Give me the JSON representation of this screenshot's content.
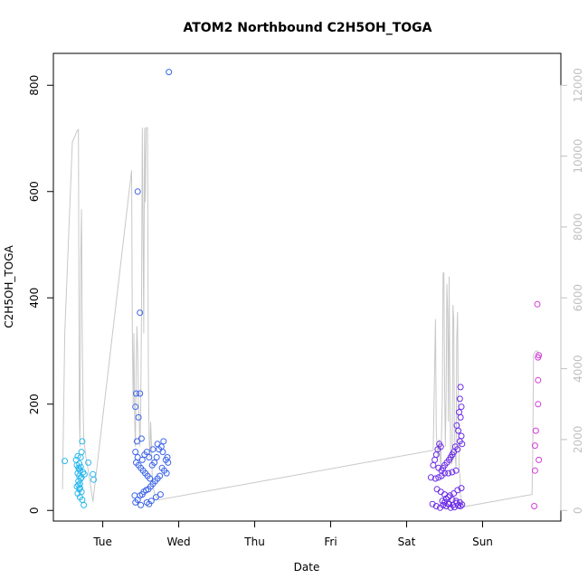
{
  "chart_data": {
    "type": "scatter",
    "title": "ATOM2 Northbound C2H5OH_TOGA",
    "xlabel": "Date",
    "ylabel": "C2H5OH_TOGA",
    "x_unit": "days",
    "x_ticks": [
      {
        "x": 1,
        "label": "Tue"
      },
      {
        "x": 2,
        "label": "Wed"
      },
      {
        "x": 3,
        "label": "Thu"
      },
      {
        "x": 4,
        "label": "Fri"
      },
      {
        "x": 5,
        "label": "Sat"
      },
      {
        "x": 6,
        "label": "Sun"
      }
    ],
    "xlim": [
      0.35,
      7.03
    ],
    "ylim": [
      -20,
      860
    ],
    "y_ticks": [
      0,
      200,
      400,
      600,
      800
    ],
    "y2lim": [
      -300,
      12900
    ],
    "y2_ticks": [
      0,
      2000,
      4000,
      6000,
      8000,
      10000,
      12000
    ],
    "colors": {
      "point_tue": "#2bb8ee",
      "point_wed": "#3c64e8",
      "point_sat": "#6b2ce6",
      "point_sun": "#d43ad8",
      "line": "#c8c8c8",
      "right_axis": "#c0c0c0"
    },
    "series": [
      {
        "color": "#2bb8ee",
        "points": [
          [
            0.5,
            93
          ],
          [
            0.71,
            100
          ],
          [
            0.72,
            110
          ],
          [
            0.73,
            130
          ],
          [
            0.66,
            85
          ],
          [
            0.68,
            80
          ],
          [
            0.69,
            78
          ],
          [
            0.7,
            75
          ],
          [
            0.67,
            70
          ],
          [
            0.69,
            65
          ],
          [
            0.71,
            60
          ],
          [
            0.68,
            55
          ],
          [
            0.7,
            50
          ],
          [
            0.66,
            45
          ],
          [
            0.69,
            40
          ],
          [
            0.72,
            35
          ],
          [
            0.67,
            32
          ],
          [
            0.7,
            25
          ],
          [
            0.73,
            20
          ],
          [
            0.75,
            10
          ],
          [
            0.69,
            88
          ],
          [
            0.71,
            82
          ],
          [
            0.74,
            72
          ],
          [
            0.76,
            68
          ],
          [
            0.72,
            62
          ],
          [
            0.68,
            48
          ],
          [
            0.7,
            42
          ],
          [
            0.81,
            90
          ],
          [
            0.87,
            68
          ],
          [
            0.88,
            58
          ],
          [
            0.65,
            95
          ],
          [
            0.67,
            102
          ]
        ]
      },
      {
        "color": "#3c64e8",
        "points": [
          [
            1.87,
            825
          ],
          [
            1.46,
            600
          ],
          [
            1.49,
            372
          ],
          [
            1.44,
            220
          ],
          [
            1.49,
            220
          ],
          [
            1.43,
            195
          ],
          [
            1.47,
            175
          ],
          [
            1.45,
            130
          ],
          [
            1.51,
            135
          ],
          [
            1.43,
            110
          ],
          [
            1.46,
            100
          ],
          [
            1.52,
            95
          ],
          [
            1.44,
            90
          ],
          [
            1.47,
            85
          ],
          [
            1.5,
            80
          ],
          [
            1.53,
            75
          ],
          [
            1.56,
            70
          ],
          [
            1.59,
            65
          ],
          [
            1.62,
            60
          ],
          [
            1.65,
            85
          ],
          [
            1.68,
            90
          ],
          [
            1.71,
            100
          ],
          [
            1.74,
            115
          ],
          [
            1.77,
            120
          ],
          [
            1.8,
            130
          ],
          [
            1.83,
            95
          ],
          [
            1.86,
            90
          ],
          [
            1.84,
            70
          ],
          [
            1.81,
            75
          ],
          [
            1.78,
            80
          ],
          [
            1.75,
            65
          ],
          [
            1.72,
            60
          ],
          [
            1.69,
            55
          ],
          [
            1.66,
            50
          ],
          [
            1.63,
            45
          ],
          [
            1.6,
            40
          ],
          [
            1.57,
            38
          ],
          [
            1.54,
            35
          ],
          [
            1.52,
            30
          ],
          [
            1.49,
            28
          ],
          [
            1.46,
            20
          ],
          [
            1.43,
            15
          ],
          [
            1.58,
            15
          ],
          [
            1.61,
            12
          ],
          [
            1.64,
            18
          ],
          [
            1.7,
            25
          ],
          [
            1.76,
            30
          ],
          [
            1.55,
            105
          ],
          [
            1.58,
            110
          ],
          [
            1.61,
            100
          ],
          [
            1.66,
            115
          ],
          [
            1.72,
            125
          ],
          [
            1.79,
            110
          ],
          [
            1.85,
            100
          ],
          [
            1.42,
            28
          ],
          [
            1.5,
            10
          ]
        ]
      },
      {
        "color": "#6b2ce6",
        "points": [
          [
            5.71,
            232
          ],
          [
            5.7,
            210
          ],
          [
            5.72,
            195
          ],
          [
            5.69,
            185
          ],
          [
            5.71,
            175
          ],
          [
            5.66,
            160
          ],
          [
            5.68,
            150
          ],
          [
            5.72,
            140
          ],
          [
            5.7,
            130
          ],
          [
            5.73,
            125
          ],
          [
            5.64,
            120
          ],
          [
            5.67,
            115
          ],
          [
            5.62,
            110
          ],
          [
            5.6,
            105
          ],
          [
            5.58,
            100
          ],
          [
            5.56,
            95
          ],
          [
            5.53,
            90
          ],
          [
            5.5,
            85
          ],
          [
            5.48,
            80
          ],
          [
            5.45,
            120
          ],
          [
            5.43,
            125
          ],
          [
            5.41,
            115
          ],
          [
            5.39,
            105
          ],
          [
            5.37,
            95
          ],
          [
            5.35,
            85
          ],
          [
            5.42,
            80
          ],
          [
            5.46,
            75
          ],
          [
            5.5,
            70
          ],
          [
            5.55,
            70
          ],
          [
            5.6,
            72
          ],
          [
            5.65,
            75
          ],
          [
            5.38,
            60
          ],
          [
            5.42,
            62
          ],
          [
            5.46,
            65
          ],
          [
            5.32,
            62
          ],
          [
            5.4,
            40
          ],
          [
            5.45,
            35
          ],
          [
            5.5,
            30
          ],
          [
            5.55,
            25
          ],
          [
            5.6,
            20
          ],
          [
            5.65,
            18
          ],
          [
            5.7,
            15
          ],
          [
            5.48,
            10
          ],
          [
            5.52,
            8
          ],
          [
            5.56,
            12
          ],
          [
            5.61,
            10
          ],
          [
            5.66,
            14
          ],
          [
            5.71,
            8
          ],
          [
            5.44,
            5
          ],
          [
            5.39,
            8
          ],
          [
            5.34,
            12
          ],
          [
            5.58,
            5
          ],
          [
            5.63,
            6
          ],
          [
            5.68,
            9
          ],
          [
            5.73,
            11
          ],
          [
            5.5,
            15
          ],
          [
            5.55,
            12
          ],
          [
            5.47,
            18
          ],
          [
            5.52,
            22
          ],
          [
            5.57,
            28
          ],
          [
            5.62,
            32
          ],
          [
            5.67,
            38
          ],
          [
            5.72,
            42
          ]
        ]
      },
      {
        "color": "#d43ad8",
        "points": [
          [
            6.72,
            388
          ],
          [
            6.74,
            292
          ],
          [
            6.73,
            288
          ],
          [
            6.73,
            245
          ],
          [
            6.73,
            200
          ],
          [
            6.7,
            150
          ],
          [
            6.69,
            122
          ],
          [
            6.74,
            95
          ],
          [
            6.69,
            75
          ],
          [
            6.68,
            8
          ]
        ]
      }
    ],
    "secondary_line": {
      "color": "#c8c8c8",
      "points": [
        [
          0.47,
          600
        ],
        [
          0.5,
          5000
        ],
        [
          0.6,
          10400
        ],
        [
          0.62,
          10500
        ],
        [
          0.64,
          10600
        ],
        [
          0.66,
          10700
        ],
        [
          0.68,
          10750
        ],
        [
          0.69,
          3000
        ],
        [
          0.7,
          1800
        ],
        [
          0.71,
          7000
        ],
        [
          0.72,
          8500
        ],
        [
          0.73,
          5000
        ],
        [
          0.74,
          3000
        ],
        [
          0.75,
          2000
        ],
        [
          0.78,
          1500
        ],
        [
          0.84,
          700
        ],
        [
          0.87,
          250
        ],
        [
          1.38,
          9600
        ],
        [
          1.39,
          5000
        ],
        [
          1.4,
          3000
        ],
        [
          1.41,
          5000
        ],
        [
          1.42,
          2500
        ],
        [
          1.43,
          1800
        ],
        [
          1.44,
          4000
        ],
        [
          1.45,
          5200
        ],
        [
          1.46,
          4500
        ],
        [
          1.47,
          3000
        ],
        [
          1.48,
          2500
        ],
        [
          1.49,
          1800
        ],
        [
          1.5,
          3000
        ],
        [
          1.51,
          5500
        ],
        [
          1.52,
          10800
        ],
        [
          1.53,
          8000
        ],
        [
          1.54,
          5000
        ],
        [
          1.55,
          10800
        ],
        [
          1.56,
          8700
        ],
        [
          1.57,
          10800
        ],
        [
          1.58,
          10800
        ],
        [
          1.59,
          10800
        ],
        [
          1.6,
          4000
        ],
        [
          1.61,
          2000
        ],
        [
          1.62,
          1500
        ],
        [
          1.63,
          2500
        ],
        [
          1.64,
          2000
        ],
        [
          1.65,
          1000
        ],
        [
          1.66,
          700
        ],
        [
          1.68,
          500
        ],
        [
          1.7,
          400
        ],
        [
          1.72,
          350
        ],
        [
          1.74,
          300
        ],
        [
          5.35,
          1700
        ],
        [
          5.38,
          5400
        ],
        [
          5.39,
          2200
        ],
        [
          5.41,
          1500
        ],
        [
          5.43,
          2000
        ],
        [
          5.45,
          1200
        ],
        [
          5.47,
          3200
        ],
        [
          5.48,
          6700
        ],
        [
          5.49,
          6700
        ],
        [
          5.5,
          3500
        ],
        [
          5.51,
          1800
        ],
        [
          5.52,
          3300
        ],
        [
          5.53,
          6400
        ],
        [
          5.54,
          5500
        ],
        [
          5.55,
          2500
        ],
        [
          5.56,
          6600
        ],
        [
          5.57,
          3200
        ],
        [
          5.58,
          1500
        ],
        [
          5.59,
          1300
        ],
        [
          5.6,
          1400
        ],
        [
          5.61,
          5800
        ],
        [
          5.62,
          5400
        ],
        [
          5.63,
          1800
        ],
        [
          5.64,
          1500
        ],
        [
          5.65,
          1200
        ],
        [
          5.66,
          4800
        ],
        [
          5.67,
          5600
        ],
        [
          5.68,
          3000
        ],
        [
          5.69,
          1200
        ],
        [
          5.7,
          1000
        ],
        [
          5.71,
          400
        ],
        [
          5.73,
          200
        ],
        [
          5.75,
          100
        ],
        [
          6.65,
          450
        ],
        [
          6.66,
          1500
        ],
        [
          6.67,
          4400
        ],
        [
          6.7,
          4500
        ],
        [
          6.72,
          4500
        ],
        [
          6.74,
          4400
        ],
        [
          6.76,
          4300
        ]
      ]
    }
  }
}
